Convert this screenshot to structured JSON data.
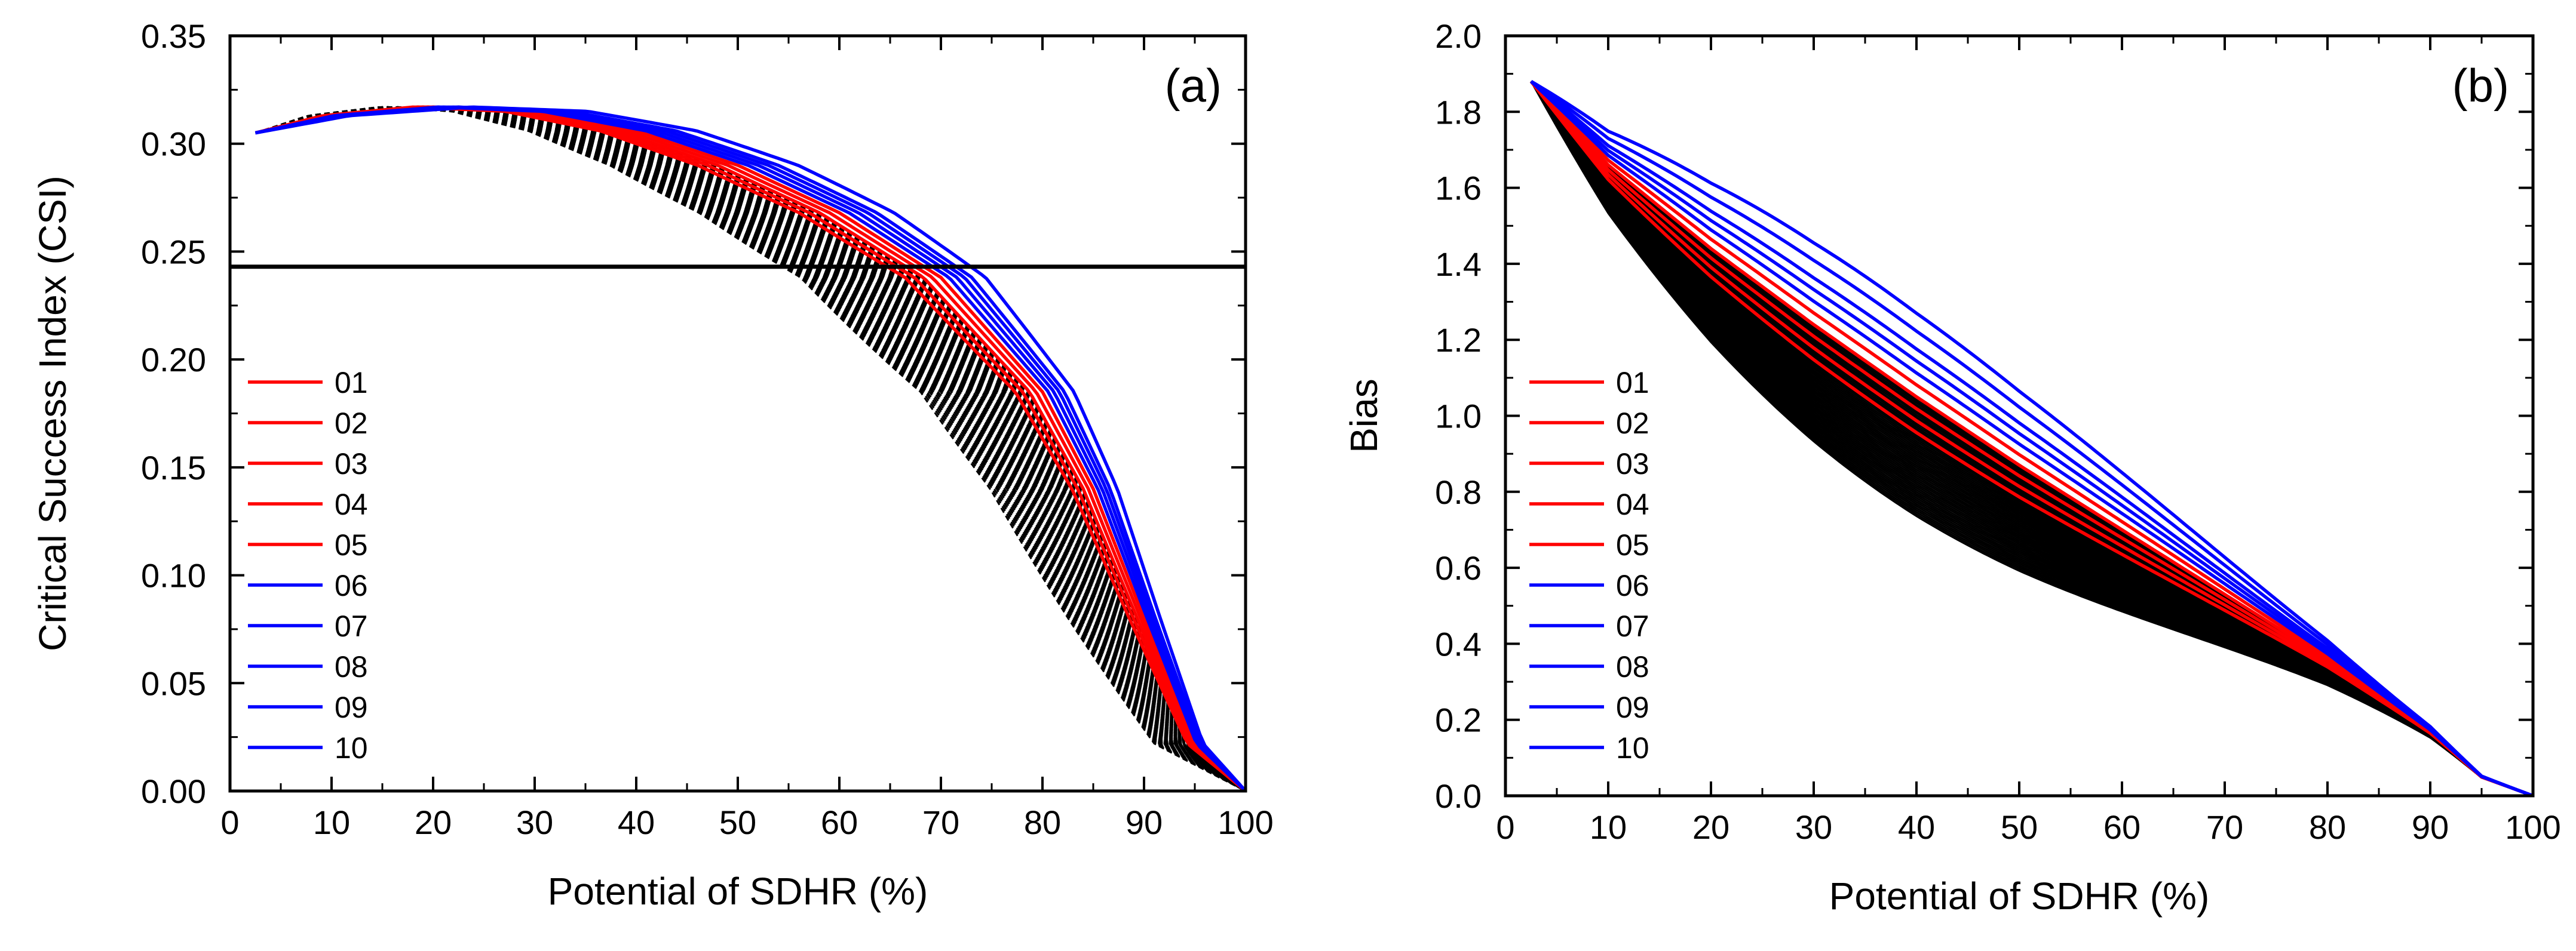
{
  "chart_data": [
    {
      "type": "line",
      "panel_label": "(a)",
      "xlabel": "Potential of SDHR (%)",
      "ylabel": "Critical Success Index (CSI)",
      "xlim": [
        0,
        100
      ],
      "ylim": [
        0.0,
        0.35
      ],
      "xticks": [
        0,
        10,
        20,
        30,
        40,
        50,
        60,
        70,
        80,
        90,
        100
      ],
      "yticks": [
        0.0,
        0.05,
        0.1,
        0.15,
        0.2,
        0.25,
        0.3,
        0.35
      ],
      "ytick_labels": [
        "0.00",
        "0.05",
        "0.10",
        "0.15",
        "0.20",
        "0.25",
        "0.30",
        "0.35"
      ],
      "xtick_labels": [
        "0",
        "10",
        "20",
        "30",
        "40",
        "50",
        "60",
        "70",
        "80",
        "90",
        "100"
      ],
      "reference_line": {
        "y": 0.243,
        "color": "#000000"
      },
      "background_series": {
        "count": 60,
        "color": "#000000",
        "style": "dashed",
        "curve": "csi",
        "shift_range": [
          -14,
          -2
        ]
      },
      "legend": {
        "position": "lower-left"
      },
      "series": [
        {
          "name": "01",
          "color": "#ff0000",
          "shift": -4
        },
        {
          "name": "02",
          "color": "#ff0000",
          "shift": -3
        },
        {
          "name": "03",
          "color": "#ff0000",
          "shift": -2
        },
        {
          "name": "04",
          "color": "#ff0000",
          "shift": -1
        },
        {
          "name": "05",
          "color": "#ff0000",
          "shift": 0
        },
        {
          "name": "06",
          "color": "#0000ff",
          "shift": 1
        },
        {
          "name": "07",
          "color": "#0000ff",
          "shift": 2
        },
        {
          "name": "08",
          "color": "#0000ff",
          "shift": 3
        },
        {
          "name": "09",
          "color": "#0000ff",
          "shift": 4
        },
        {
          "name": "10",
          "color": "#0000ff",
          "shift": 6
        }
      ],
      "base_curve": {
        "x": [
          2.5,
          10,
          20,
          30,
          40,
          50,
          60,
          70,
          80,
          85,
          90,
          95,
          100
        ],
        "y": [
          0.305,
          0.313,
          0.317,
          0.315,
          0.306,
          0.29,
          0.268,
          0.238,
          0.185,
          0.14,
          0.08,
          0.022,
          0.0
        ]
      }
    },
    {
      "type": "line",
      "panel_label": "(b)",
      "xlabel": "Potential of SDHR (%)",
      "ylabel": "Bias",
      "xlim": [
        0,
        100
      ],
      "ylim": [
        0.0,
        2.0
      ],
      "xticks": [
        0,
        10,
        20,
        30,
        40,
        50,
        60,
        70,
        80,
        90,
        100
      ],
      "yticks": [
        0.0,
        0.2,
        0.4,
        0.6,
        0.8,
        1.0,
        1.2,
        1.4,
        1.6,
        1.8,
        2.0
      ],
      "ytick_labels": [
        "0.0",
        "0.2",
        "0.4",
        "0.6",
        "0.8",
        "1.0",
        "1.2",
        "1.4",
        "1.6",
        "1.8",
        "2.0"
      ],
      "xtick_labels": [
        "0",
        "10",
        "20",
        "30",
        "40",
        "50",
        "60",
        "70",
        "80",
        "90",
        "100"
      ],
      "background_series": {
        "count": 60,
        "color": "#000000",
        "style": "solid",
        "curve": "bias",
        "scale_range": [
          0.8,
          1.0
        ]
      },
      "legend": {
        "position": "lower-left"
      },
      "series": [
        {
          "name": "01",
          "color": "#ff0000",
          "scale": 0.94
        },
        {
          "name": "02",
          "color": "#ff0000",
          "scale": 0.96
        },
        {
          "name": "03",
          "color": "#ff0000",
          "scale": 0.98
        },
        {
          "name": "04",
          "color": "#ff0000",
          "scale": 1.0
        },
        {
          "name": "05",
          "color": "#ff0000",
          "scale": 1.02
        },
        {
          "name": "06",
          "color": "#0000ff",
          "scale": 1.04
        },
        {
          "name": "07",
          "color": "#0000ff",
          "scale": 1.06
        },
        {
          "name": "08",
          "color": "#0000ff",
          "scale": 1.08
        },
        {
          "name": "09",
          "color": "#0000ff",
          "scale": 1.11
        },
        {
          "name": "10",
          "color": "#0000ff",
          "scale": 1.14
        }
      ],
      "base_curve": {
        "x": [
          2.5,
          10,
          20,
          30,
          40,
          50,
          60,
          70,
          80,
          90,
          95,
          100
        ],
        "y": [
          1.88,
          1.66,
          1.44,
          1.24,
          1.05,
          0.87,
          0.7,
          0.53,
          0.36,
          0.17,
          0.05,
          0.0
        ]
      }
    }
  ]
}
